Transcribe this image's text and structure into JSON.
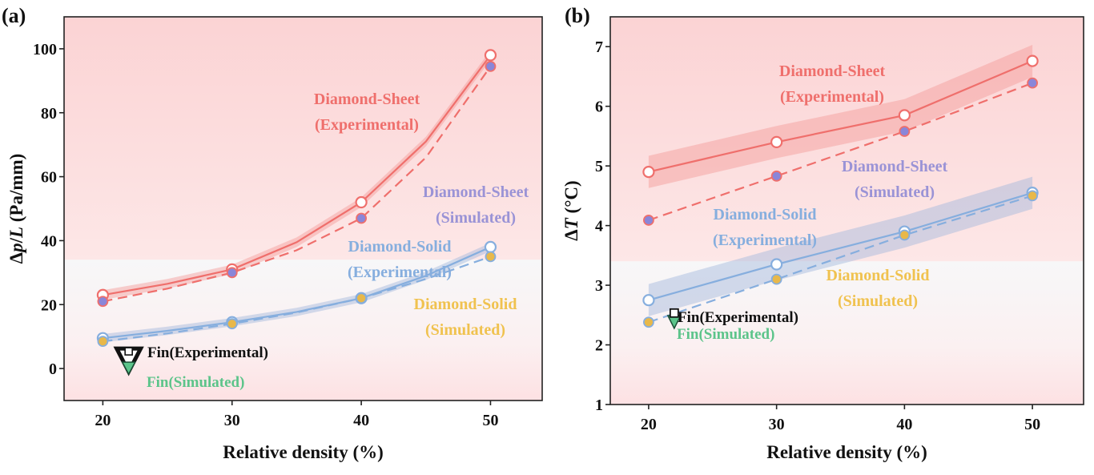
{
  "colors": {
    "sheet": "#ef6f6c",
    "sheet_sim_fill": "#8a86d8",
    "sheet_sim_label": "#9a93d6",
    "solid": "#86aede",
    "solid_sim_fill": "#e8b84a",
    "solid_sim_label": "#f0c24f",
    "fin_sim": "#5cc48a",
    "sheet_band": "#f49a97",
    "solid_band": "#9fb6dc"
  },
  "chart_data": [
    {
      "panel": "(a)",
      "type": "line",
      "xlabel": "Relative density (%)",
      "ylabel_parts": [
        "Δ",
        "p",
        "/",
        "L",
        " (Pa/mm)"
      ],
      "xlim": [
        17,
        54
      ],
      "ylim": [
        -10,
        110
      ],
      "xticks": [
        20,
        30,
        40,
        50
      ],
      "xtick_labels": [
        "20",
        "30",
        "40",
        "50"
      ],
      "yticks": [
        0,
        20,
        40,
        60,
        80,
        100
      ],
      "ytick_labels": [
        "0",
        "20",
        "40",
        "60",
        "80",
        "100"
      ],
      "background_split_y": 34,
      "series": [
        {
          "name": "Diamond-Sheet (Experimental)",
          "style": "exp",
          "color_key": "sheet",
          "band_key": "sheet_band",
          "band": 1.5,
          "x": [
            20,
            30,
            40,
            50
          ],
          "values": [
            23,
            31,
            52,
            98
          ],
          "curve": [
            [
              20,
              23
            ],
            [
              25,
              26.5
            ],
            [
              30,
              31
            ],
            [
              35,
              39.5
            ],
            [
              40,
              52
            ],
            [
              45,
              71
            ],
            [
              50,
              98
            ]
          ],
          "label": [
            "Diamond-Sheet",
            "(Experimental)"
          ]
        },
        {
          "name": "Diamond-Sheet (Simulated)",
          "style": "sim",
          "color_key": "sheet",
          "fill_key": "sheet_sim_fill",
          "x": [
            20,
            30,
            40,
            50
          ],
          "values": [
            21,
            30,
            47,
            94.5
          ],
          "curve": [
            [
              20,
              21
            ],
            [
              25,
              25
            ],
            [
              30,
              30
            ],
            [
              35,
              37
            ],
            [
              40,
              47
            ],
            [
              45,
              66
            ],
            [
              50,
              94.5
            ]
          ],
          "label": [
            "Diamond-Sheet",
            "(Simulated)"
          ]
        },
        {
          "name": "Diamond-Solid (Experimental)",
          "style": "exp",
          "color_key": "solid",
          "band_key": "solid_band",
          "band": 1.3,
          "x": [
            20,
            30,
            40,
            50
          ],
          "values": [
            9.5,
            14.5,
            22,
            38
          ],
          "curve": [
            [
              20,
              9.5
            ],
            [
              25,
              11.8
            ],
            [
              30,
              14.5
            ],
            [
              35,
              17.7
            ],
            [
              40,
              22
            ],
            [
              45,
              29
            ],
            [
              50,
              38
            ]
          ],
          "label": [
            "Diamond-Solid",
            "(Experimental)"
          ]
        },
        {
          "name": "Diamond-Solid (Simulated)",
          "style": "sim",
          "color_key": "solid",
          "fill_key": "solid_sim_fill",
          "x": [
            20,
            30,
            40,
            50
          ],
          "values": [
            8.5,
            14,
            22,
            35
          ],
          "curve": [
            [
              20,
              8.5
            ],
            [
              25,
              11
            ],
            [
              30,
              14
            ],
            [
              35,
              17.5
            ],
            [
              40,
              22
            ],
            [
              45,
              28
            ],
            [
              50,
              35
            ]
          ],
          "label": [
            "Diamond-Solid",
            "(Simulated)"
          ]
        }
      ],
      "fin": {
        "experimental": {
          "x": 22,
          "y": 3,
          "label": "Fin(Experimental)"
        },
        "simulated": {
          "x": 22,
          "y": 0.5,
          "label": "Fin(Simulated)"
        }
      }
    },
    {
      "panel": "(b)",
      "type": "line",
      "xlabel": "Relative density (%)",
      "ylabel_parts": [
        "Δ",
        "T",
        " (°C)",
        "",
        ""
      ],
      "xlim": [
        17,
        54
      ],
      "ylim": [
        1,
        7.5
      ],
      "xticks": [
        20,
        30,
        40,
        50
      ],
      "xtick_labels": [
        "20",
        "30",
        "40",
        "50"
      ],
      "yticks": [
        1,
        2,
        3,
        4,
        5,
        6,
        7
      ],
      "ytick_labels": [
        "1",
        "2",
        "3",
        "4",
        "5",
        "6",
        "7"
      ],
      "background_split_y": 3.4,
      "series": [
        {
          "name": "Diamond-Sheet (Experimental)",
          "style": "exp",
          "color_key": "sheet",
          "band_key": "sheet_band",
          "band": 0.27,
          "x": [
            20,
            30,
            40,
            50
          ],
          "values": [
            4.9,
            5.4,
            5.85,
            6.76
          ],
          "curve": [
            [
              20,
              4.9
            ],
            [
              30,
              5.4
            ],
            [
              40,
              5.85
            ],
            [
              50,
              6.76
            ]
          ],
          "label": [
            "Diamond-Sheet",
            "(Experimental)"
          ]
        },
        {
          "name": "Diamond-Sheet (Simulated)",
          "style": "sim",
          "color_key": "sheet",
          "fill_key": "sheet_sim_fill",
          "x": [
            20,
            30,
            40,
            50
          ],
          "values": [
            4.09,
            4.83,
            5.58,
            6.39
          ],
          "curve": [
            [
              20,
              4.09
            ],
            [
              30,
              4.83
            ],
            [
              40,
              5.58
            ],
            [
              50,
              6.39
            ]
          ],
          "label": [
            "Diamond-Sheet",
            "(Simulated)"
          ]
        },
        {
          "name": "Diamond-Solid (Experimental)",
          "style": "exp",
          "color_key": "solid",
          "band_key": "solid_band",
          "band": 0.27,
          "x": [
            20,
            30,
            40,
            50
          ],
          "values": [
            2.75,
            3.35,
            3.9,
            4.55
          ],
          "curve": [
            [
              20,
              2.75
            ],
            [
              30,
              3.35
            ],
            [
              40,
              3.9
            ],
            [
              50,
              4.55
            ]
          ],
          "label": [
            "Diamond-Solid",
            "(Experimental)"
          ]
        },
        {
          "name": "Diamond-Solid (Simulated)",
          "style": "sim",
          "color_key": "solid",
          "fill_key": "solid_sim_fill",
          "x": [
            20,
            30,
            40,
            50
          ],
          "values": [
            2.38,
            3.1,
            3.84,
            4.5
          ],
          "curve": [
            [
              20,
              2.38
            ],
            [
              30,
              3.1
            ],
            [
              40,
              3.84
            ],
            [
              50,
              4.5
            ]
          ],
          "label": [
            "Diamond-Solid",
            "(Simulated)"
          ]
        }
      ],
      "fin": {
        "experimental": {
          "x": 22,
          "y": 2.52,
          "label": "Fin(Experimental)"
        },
        "simulated": {
          "x": 22,
          "y": 2.41,
          "label": "Fin(Simulated)"
        }
      }
    }
  ]
}
